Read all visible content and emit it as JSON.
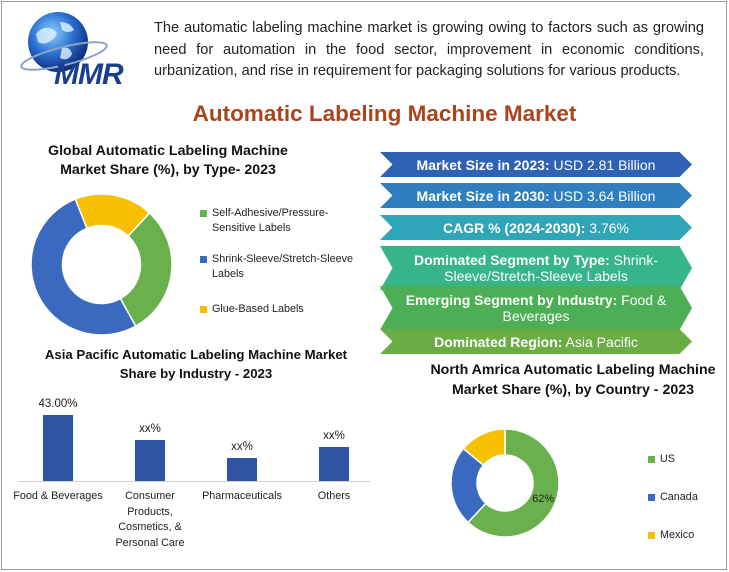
{
  "brand": {
    "logo_text": "MMR",
    "logo_name": "globe-logo-icon"
  },
  "intro_text": "The automatic labeling machine market is growing owing to factors such as growing need for automation in the food sector, improvement in economic conditions, urbanization, and rise in requirement for packaging solutions for various products.",
  "main_title": "Automatic Labeling Machine Market",
  "highlights": [
    {
      "label": "Market Size in 2023:",
      "value": "USD 2.81 Billion",
      "color": "#2f62b3"
    },
    {
      "label": "Market Size in 2030:",
      "value": "USD 3.64 Billion",
      "color": "#2f7fc0"
    },
    {
      "label": "CAGR % (2024-2030):",
      "value": "3.76%",
      "color": "#2fa5b8"
    },
    {
      "label": "Dominated Segment by Type:",
      "value": "Shrink-Sleeve/Stretch-Sleeve Labels",
      "color": "#36b58c"
    },
    {
      "label": "Emerging Segment by Industry:",
      "value": "Food & Beverages",
      "color": "#4caf55"
    },
    {
      "label": "Dominated Region:",
      "value": "Asia Pacific",
      "color": "#6aad45"
    }
  ],
  "chart_data": [
    {
      "type": "pie",
      "title": "Global Automatic Labeling Machine Market Share (%), by Type- 2023",
      "categories": [
        "Self-Adhesive/Pressure-Sensitive Labels",
        "Shrink-Sleeve/Stretch-Sleeve Labels",
        "Glue-Based Labels"
      ],
      "values": [
        30,
        52,
        18
      ],
      "colors": [
        "#6ab04c",
        "#3c69c0",
        "#f6c000"
      ],
      "legend": "right"
    },
    {
      "type": "bar",
      "title": "Asia Pacific Automatic Labeling Machine Market Share by Industry - 2023",
      "categories": [
        "Food & Beverages",
        "Consumer Products, Cosmetics, & Personal Care",
        "Pharmaceuticals",
        "Others"
      ],
      "values": [
        43.0,
        27,
        15,
        22
      ],
      "data_labels": [
        "43.00%",
        "xx%",
        "xx%",
        "xx%"
      ],
      "ylim": [
        0,
        43
      ],
      "color": "#2e54a3",
      "grid": false
    },
    {
      "type": "pie",
      "title": "North Amrica Automatic Labeling Machine Market Share (%), by Country - 2023",
      "categories": [
        "US",
        "Canada",
        "Mexico"
      ],
      "values": [
        62,
        24,
        14
      ],
      "data_labels": [
        "62%",
        "",
        ""
      ],
      "colors": [
        "#6ab04c",
        "#3c69c0",
        "#f6c000"
      ],
      "legend": "right"
    }
  ]
}
